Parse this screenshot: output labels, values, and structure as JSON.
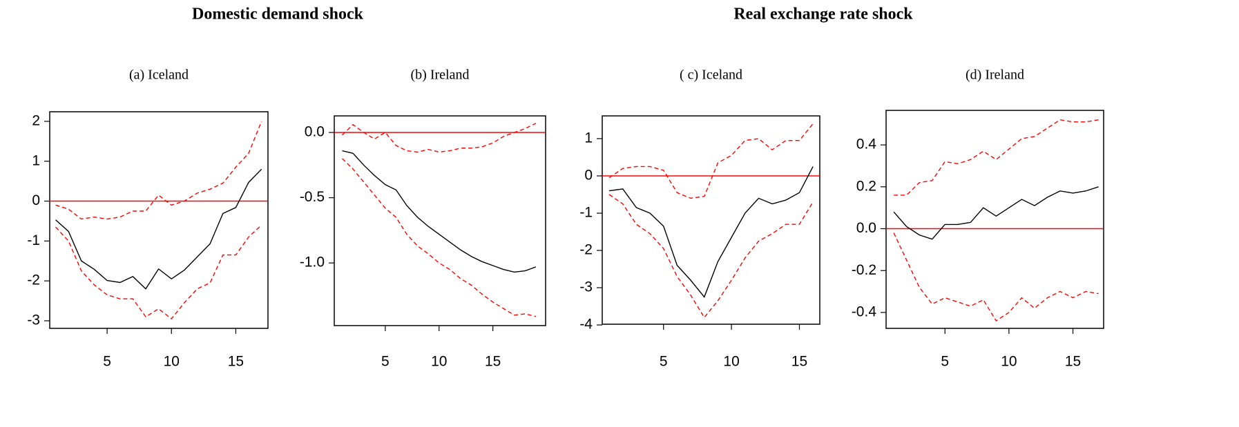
{
  "section_titles": [
    "Domestic demand shock",
    "Real exchange rate shock"
  ],
  "chart_data": [
    {
      "type": "line",
      "title": "(a) Iceland",
      "hline": 0,
      "hline_color": "#ff0000",
      "x": [
        1,
        2,
        3,
        4,
        5,
        6,
        7,
        8,
        9,
        10,
        11,
        12,
        13,
        14,
        15,
        16,
        17
      ],
      "xlim": [
        0.54,
        17.5
      ],
      "xticks": [
        5,
        10,
        15
      ],
      "ylim": [
        -3.19,
        2.24
      ],
      "yticks": [
        -3,
        -2,
        -1,
        0,
        1,
        2
      ],
      "series": [
        {
          "color": "#000000",
          "dashed": false,
          "values": [
            -0.47,
            -0.76,
            -1.5,
            -1.71,
            -1.99,
            -2.04,
            -1.89,
            -2.2,
            -1.7,
            -1.95,
            -1.73,
            -1.4,
            -1.07,
            -0.31,
            -0.16,
            0.47,
            0.8
          ]
        },
        {
          "color": "#ff0000",
          "dashed": true,
          "values": [
            -0.1,
            -0.2,
            -0.45,
            -0.4,
            -0.45,
            -0.4,
            -0.25,
            -0.25,
            0.15,
            -0.1,
            0.0,
            0.2,
            0.3,
            0.45,
            0.85,
            1.2,
            2.0
          ]
        },
        {
          "color": "#ff0000",
          "dashed": true,
          "values": [
            -0.65,
            -1.0,
            -1.75,
            -2.1,
            -2.35,
            -2.45,
            -2.45,
            -2.9,
            -2.7,
            -2.95,
            -2.55,
            -2.2,
            -2.05,
            -1.35,
            -1.35,
            -0.9,
            -0.6
          ]
        }
      ]
    },
    {
      "type": "line",
      "title": "(b) Ireland",
      "hline": 0,
      "hline_color": "#ff0000",
      "x": [
        1,
        2,
        3,
        4,
        5,
        6,
        7,
        8,
        9,
        10,
        11,
        12,
        13,
        14,
        15,
        16,
        17,
        18,
        19
      ],
      "xlim": [
        0.26,
        19.9
      ],
      "xticks": [
        5,
        10,
        15
      ],
      "ylim": [
        -1.48,
        0.127
      ],
      "yticks": [
        {
          "value": -1.0,
          "label": "-1.0"
        },
        -0.5,
        {
          "value": 0.0,
          "label": "0.0"
        }
      ],
      "series": [
        {
          "color": "#000000",
          "dashed": false,
          "values": [
            -0.14,
            -0.16,
            -0.25,
            -0.33,
            -0.4,
            -0.44,
            -0.56,
            -0.65,
            -0.72,
            -0.78,
            -0.84,
            -0.9,
            -0.95,
            -0.99,
            -1.02,
            -1.05,
            -1.07,
            -1.06,
            -1.03
          ]
        },
        {
          "color": "#ff0000",
          "dashed": true,
          "values": [
            -0.02,
            0.06,
            0.0,
            -0.05,
            0.0,
            -0.1,
            -0.14,
            -0.15,
            -0.13,
            -0.15,
            -0.14,
            -0.12,
            -0.12,
            -0.11,
            -0.08,
            -0.03,
            0.0,
            0.03,
            0.07
          ]
        },
        {
          "color": "#ff0000",
          "dashed": true,
          "values": [
            -0.2,
            -0.28,
            -0.38,
            -0.48,
            -0.58,
            -0.65,
            -0.78,
            -0.87,
            -0.93,
            -1.0,
            -1.05,
            -1.12,
            -1.17,
            -1.24,
            -1.3,
            -1.35,
            -1.4,
            -1.39,
            -1.41
          ]
        }
      ]
    },
    {
      "type": "line",
      "title": "( c) Iceland",
      "hline": 0,
      "hline_color": "#ff0000",
      "x": [
        1,
        2,
        3,
        4,
        5,
        6,
        7,
        8,
        9,
        10,
        11,
        12,
        13,
        14,
        15,
        16
      ],
      "xlim": [
        0.49,
        16.5
      ],
      "xticks": [
        5,
        10,
        15
      ],
      "ylim": [
        -3.98,
        1.61
      ],
      "yticks": [
        -4,
        -3,
        -2,
        -1,
        0,
        1
      ],
      "series": [
        {
          "color": "#000000",
          "dashed": false,
          "values": [
            -0.4,
            -0.35,
            -0.85,
            -1.0,
            -1.35,
            -2.4,
            -2.8,
            -3.25,
            -2.3,
            -1.65,
            -1.0,
            -0.6,
            -0.75,
            -0.65,
            -0.45,
            0.25
          ]
        },
        {
          "color": "#ff0000",
          "dashed": true,
          "values": [
            -0.05,
            0.2,
            0.25,
            0.25,
            0.15,
            -0.45,
            -0.6,
            -0.55,
            0.35,
            0.55,
            0.95,
            1.0,
            0.7,
            0.95,
            0.95,
            1.4
          ]
        },
        {
          "color": "#ff0000",
          "dashed": true,
          "values": [
            -0.5,
            -0.75,
            -1.3,
            -1.55,
            -1.95,
            -2.7,
            -3.2,
            -3.8,
            -3.35,
            -2.8,
            -2.2,
            -1.75,
            -1.55,
            -1.3,
            -1.3,
            -0.7
          ]
        }
      ]
    },
    {
      "type": "line",
      "title": "(d) Ireland",
      "hline": 0,
      "hline_color": "#ff0000",
      "x": [
        1,
        2,
        3,
        4,
        5,
        6,
        7,
        8,
        9,
        10,
        11,
        12,
        13,
        14,
        15,
        16,
        17
      ],
      "xlim": [
        0.4,
        17.4
      ],
      "xticks": [
        5,
        10,
        15
      ],
      "ylim": [
        -0.476,
        0.565
      ],
      "yticks": [
        -0.4,
        -0.2,
        {
          "value": 0.0,
          "label": "0.0"
        },
        0.2,
        0.4
      ],
      "series": [
        {
          "color": "#000000",
          "dashed": false,
          "values": [
            0.08,
            0.01,
            -0.03,
            -0.05,
            0.02,
            0.02,
            0.03,
            0.1,
            0.06,
            0.1,
            0.14,
            0.11,
            0.15,
            0.18,
            0.17,
            0.18,
            0.2
          ]
        },
        {
          "color": "#ff0000",
          "dashed": true,
          "values": [
            0.16,
            0.16,
            0.22,
            0.23,
            0.32,
            0.31,
            0.33,
            0.37,
            0.33,
            0.38,
            0.43,
            0.44,
            0.48,
            0.52,
            0.51,
            0.51,
            0.52
          ]
        },
        {
          "color": "#ff0000",
          "dashed": true,
          "values": [
            -0.02,
            -0.15,
            -0.28,
            -0.36,
            -0.33,
            -0.35,
            -0.37,
            -0.34,
            -0.44,
            -0.4,
            -0.33,
            -0.38,
            -0.33,
            -0.3,
            -0.33,
            -0.3,
            -0.31
          ]
        }
      ]
    }
  ]
}
